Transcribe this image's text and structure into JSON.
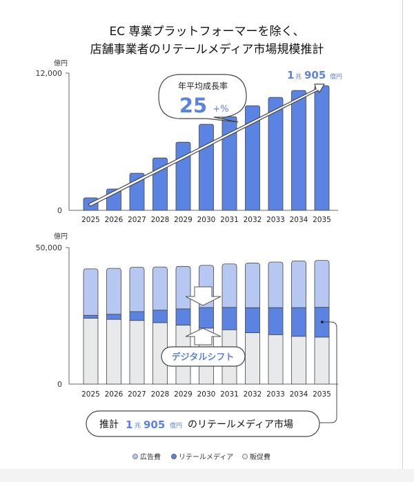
{
  "title_line1": "EC 専業プラットフォーマーを除く、",
  "title_line2": "店舗事業者のリテールメディア市場規模推計",
  "colors": {
    "ad": "#b6c8f2",
    "retail_media": "#5b83e2",
    "promo": "#e8e9eb",
    "accent": "#5b83e2",
    "stroke": "#444444"
  },
  "chart_data": [
    {
      "type": "bar",
      "unit": "億円",
      "categories": [
        "2025",
        "2026",
        "2027",
        "2028",
        "2029",
        "2030",
        "2031",
        "2032",
        "2033",
        "2034",
        "2035"
      ],
      "values": [
        1090,
        1870,
        3250,
        4580,
        5960,
        7530,
        8190,
        9150,
        9880,
        10480,
        10905
      ],
      "ylim": [
        0,
        12000
      ],
      "yticks": [
        "0",
        "12,000"
      ],
      "grid": false,
      "annotations": {
        "cagr_label": "年平均成長率",
        "cagr_value": "25",
        "cagr_suffix": "+%",
        "end_value_1": "1",
        "end_value_cho": "兆",
        "end_value_2": "905",
        "end_value_unit": "億円"
      }
    },
    {
      "type": "bar",
      "stacked": true,
      "unit": "億円",
      "categories": [
        "2025",
        "2026",
        "2027",
        "2028",
        "2029",
        "2030",
        "2031",
        "2032",
        "2033",
        "2034",
        "2035"
      ],
      "series": [
        {
          "name": "販促費",
          "values": [
            24100,
            23700,
            23300,
            22500,
            21600,
            20500,
            19900,
            18800,
            18100,
            17500,
            17200
          ]
        },
        {
          "name": "リテールメディア",
          "values": [
            1090,
            1870,
            3250,
            4580,
            5960,
            7530,
            8190,
            9150,
            9880,
            10480,
            10905
          ]
        },
        {
          "name": "広告費",
          "values": [
            17010,
            16830,
            16250,
            15820,
            15540,
            15470,
            15910,
            16350,
            16720,
            17120,
            17195
          ]
        }
      ],
      "ylim": [
        0,
        50000
      ],
      "yticks": [
        "0",
        "50,000"
      ],
      "grid": false,
      "legend_position": "bottom",
      "legend": [
        "広告費",
        "リテールメディア",
        "販促費"
      ],
      "annotations": {
        "shift_label": "デジタルシフト",
        "callout_prefix": "推計",
        "callout_1": "1",
        "callout_cho": "兆",
        "callout_2": "905",
        "callout_unit": "億円",
        "callout_suffix": "のリテールメディア市場"
      }
    }
  ]
}
